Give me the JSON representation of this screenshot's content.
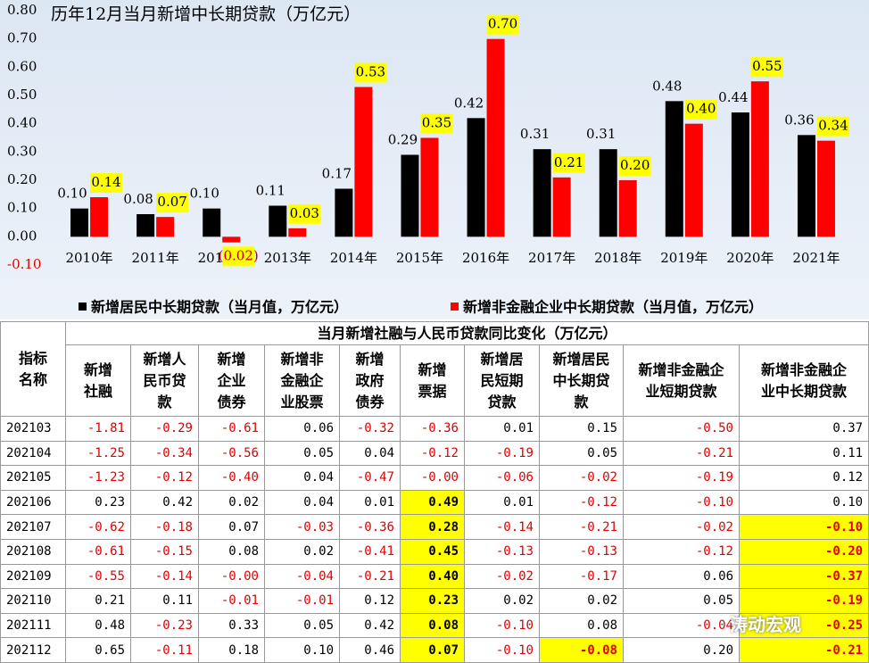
{
  "chart_data": {
    "type": "bar",
    "title": "历年12月当月新增中长期贷款（万亿元）",
    "categories": [
      "2010年",
      "2011年",
      "2012年",
      "2013年",
      "2014年",
      "2015年",
      "2016年",
      "2017年",
      "2018年",
      "2019年",
      "2020年",
      "2021年"
    ],
    "series": [
      {
        "name": "新增居民中长期贷款（当月值，万亿元）",
        "color": "#000000",
        "values": [
          0.1,
          0.08,
          0.1,
          0.11,
          0.17,
          0.29,
          0.42,
          0.31,
          0.31,
          0.48,
          0.44,
          0.36
        ],
        "value_labels": [
          "0.10",
          "0.08",
          "0.10",
          "0.11",
          "0.17",
          "0.29",
          "0.42",
          "0.31",
          "0.31",
          "0.48",
          "0.44",
          "0.36"
        ]
      },
      {
        "name": "新增非金融企业中长期贷款（当月值，万亿元）",
        "color": "#ff0000",
        "values": [
          0.14,
          0.07,
          -0.02,
          0.03,
          0.53,
          0.35,
          0.7,
          0.21,
          0.2,
          0.4,
          0.55,
          0.34
        ],
        "value_labels": [
          "0.14",
          "0.07",
          "(0.02)",
          "0.03",
          "0.53",
          "0.35",
          "0.70",
          "0.21",
          "0.20",
          "0.40",
          "0.55",
          "0.34"
        ]
      }
    ],
    "ylim": [
      -0.1,
      0.8
    ],
    "yticks": [
      {
        "value": -0.1,
        "label": "-0.10"
      },
      {
        "value": 0,
        "label": "0.00"
      },
      {
        "value": 0.1,
        "label": "0.10"
      },
      {
        "value": 0.2,
        "label": "0.20"
      },
      {
        "value": 0.3,
        "label": "0.30"
      },
      {
        "value": 0.4,
        "label": "0.40"
      },
      {
        "value": 0.5,
        "label": "0.50"
      },
      {
        "value": 0.6,
        "label": "0.60"
      },
      {
        "value": 0.7,
        "label": "0.70"
      },
      {
        "value": 0.8,
        "label": "0.80"
      }
    ],
    "legend": "bottom"
  },
  "table": {
    "corner": "指标\n名称",
    "header_title": "当月新增社融与人民币贷款同比变化（万亿元）",
    "columns": [
      "新增\n社融",
      "新增人\n民币贷\n款",
      "新增\n企业\n债券",
      "新增非\n金融企\n业股票",
      "新增\n政府\n债券",
      "新增\n票据",
      "新增居\n民短期\n贷款",
      "新增居民\n中长期贷\n款",
      "新增非金融企\n业短期贷款",
      "新增非金融企\n业中长期贷款"
    ],
    "rows": [
      [
        "202103",
        "-1.81",
        "-0.29",
        "-0.61",
        "0.06",
        "-0.32",
        "-0.36",
        "0.01",
        "0.15",
        "-0.50",
        "0.37"
      ],
      [
        "202104",
        "-1.25",
        "-0.34",
        "-0.56",
        "0.05",
        "0.04",
        "-0.12",
        "-0.19",
        "0.05",
        "-0.21",
        "0.11"
      ],
      [
        "202105",
        "-1.23",
        "-0.12",
        "-0.40",
        "0.04",
        "-0.47",
        "-0.00",
        "-0.06",
        "-0.02",
        "-0.19",
        "0.12"
      ],
      [
        "202106",
        "0.23",
        "0.42",
        "0.02",
        "0.04",
        "0.01",
        "0.49",
        "0.01",
        "-0.12",
        "-0.10",
        "0.10"
      ],
      [
        "202107",
        "-0.62",
        "-0.18",
        "0.07",
        "-0.03",
        "-0.36",
        "0.28",
        "-0.14",
        "-0.21",
        "-0.02",
        "-0.10"
      ],
      [
        "202108",
        "-0.61",
        "-0.15",
        "0.08",
        "0.02",
        "-0.41",
        "0.45",
        "-0.13",
        "-0.13",
        "-0.12",
        "-0.20"
      ],
      [
        "202109",
        "-0.55",
        "-0.14",
        "-0.00",
        "-0.04",
        "-0.21",
        "0.40",
        "-0.02",
        "-0.17",
        "0.06",
        "-0.37"
      ],
      [
        "202110",
        "0.21",
        "0.11",
        "-0.01",
        "-0.01",
        "0.12",
        "0.23",
        "0.02",
        "0.02",
        "0.05",
        "-0.19"
      ],
      [
        "202111",
        "0.48",
        "-0.23",
        "0.33",
        "0.05",
        "0.42",
        "0.08",
        "-0.10",
        "0.08",
        "-0.04",
        "-0.25"
      ],
      [
        "202112",
        "0.65",
        "-0.11",
        "0.18",
        "0.10",
        "0.46",
        "0.07",
        "-0.10",
        "-0.08",
        "0.20",
        "-0.21"
      ]
    ]
  },
  "watermark": "涛动宏观"
}
